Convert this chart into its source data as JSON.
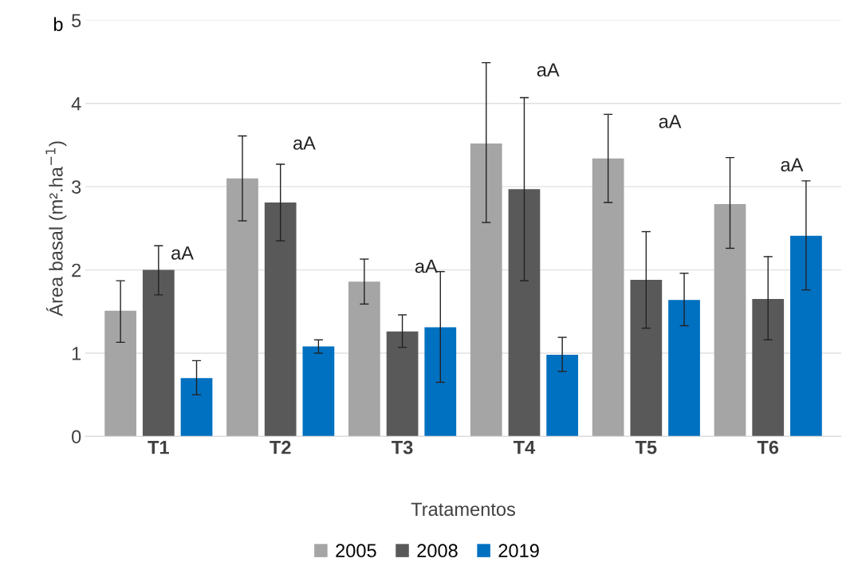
{
  "chart_data": {
    "type": "bar",
    "xlabel": "Tratamentos",
    "ylabel": "Área basal (m².ha$^{−1}$)",
    "categories": [
      "T1",
      "T2",
      "T3",
      "T4",
      "T5",
      "T6"
    ],
    "series": [
      {
        "name": "2005",
        "color": "#a5a5a5",
        "values": [
          1.51,
          3.1,
          1.86,
          3.52,
          3.34,
          2.79
        ],
        "errors": [
          [
            1.13,
            1.87
          ],
          [
            2.59,
            3.61
          ],
          [
            1.59,
            2.13
          ],
          [
            2.57,
            4.49
          ],
          [
            2.81,
            3.87
          ],
          [
            2.26,
            3.35
          ]
        ]
      },
      {
        "name": "2008",
        "color": "#595959",
        "values": [
          2.0,
          2.81,
          1.26,
          2.97,
          1.88,
          1.65
        ],
        "errors": [
          [
            1.7,
            2.29
          ],
          [
            2.35,
            3.27
          ],
          [
            1.07,
            1.46
          ],
          [
            1.87,
            4.07
          ],
          [
            1.3,
            2.46
          ],
          [
            1.16,
            2.16
          ]
        ]
      },
      {
        "name": "2019",
        "color": "#0070c0",
        "values": [
          0.7,
          1.08,
          1.31,
          0.98,
          1.64,
          2.41
        ],
        "errors": [
          [
            0.5,
            0.91
          ],
          [
            1.0,
            1.16
          ],
          [
            0.65,
            1.98
          ],
          [
            0.78,
            1.19
          ],
          [
            1.33,
            1.96
          ],
          [
            1.76,
            3.07
          ]
        ]
      }
    ],
    "ylim": [
      0,
      5
    ],
    "yticks": [
      0,
      1,
      2,
      3,
      4,
      5
    ],
    "grid": "y",
    "legend": "bottom",
    "annotations": [
      "b",
      "aA",
      "aA",
      "aA",
      "aA",
      "aA",
      "aA"
    ]
  }
}
